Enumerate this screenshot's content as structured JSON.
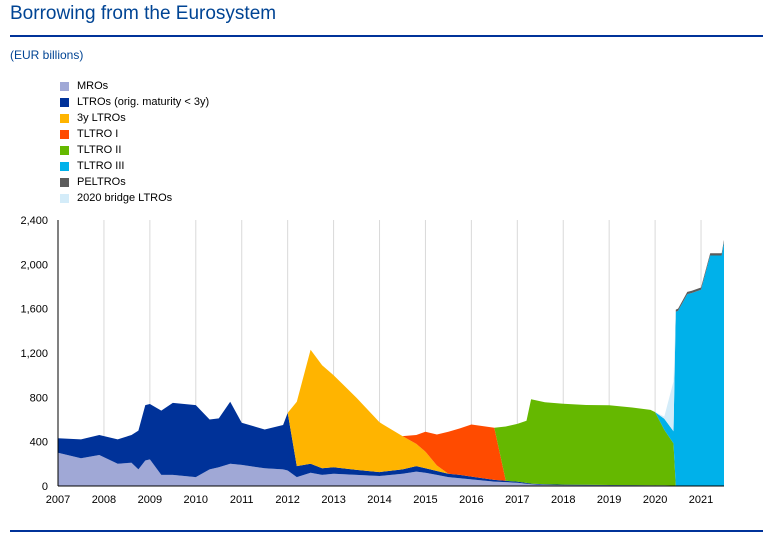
{
  "page": {
    "title": "Borrowing from the Eurosystem",
    "unit": "(EUR billions)"
  },
  "chart_data": {
    "type": "area",
    "stacked": true,
    "title": "Borrowing from the Eurosystem",
    "ylabel": "(EUR billions)",
    "xlim": [
      2007.0,
      2021.5
    ],
    "ylim": [
      0,
      2400
    ],
    "yticks": [
      "0",
      "400",
      "800",
      "1,200",
      "1,600",
      "2,000",
      "2,400"
    ],
    "xticks": [
      "2007",
      "2008",
      "2009",
      "2010",
      "2011",
      "2012",
      "2013",
      "2014",
      "2015",
      "2016",
      "2017",
      "2018",
      "2019",
      "2020",
      "2021"
    ],
    "grid": "vertical",
    "legend_position": "top-left",
    "x": [
      2007.0,
      2007.5,
      2007.9,
      2008.3,
      2008.6,
      2008.75,
      2008.9,
      2009.0,
      2009.25,
      2009.5,
      2009.75,
      2010.0,
      2010.3,
      2010.5,
      2010.75,
      2011.0,
      2011.5,
      2011.9,
      2012.0,
      2012.2,
      2012.5,
      2012.75,
      2013.0,
      2013.5,
      2014.0,
      2014.5,
      2014.8,
      2015.0,
      2015.25,
      2015.5,
      2015.75,
      2016.0,
      2016.25,
      2016.5,
      2016.75,
      2017.0,
      2017.2,
      2017.3,
      2017.6,
      2018.0,
      2018.5,
      2019.0,
      2019.5,
      2019.9,
      2020.0,
      2020.2,
      2020.4,
      2020.45,
      2020.5,
      2020.7,
      2020.8,
      2021.0,
      2021.2,
      2021.3,
      2021.45,
      2021.5
    ],
    "series": [
      {
        "name": "MROs",
        "color": "#a0a8d6",
        "values": [
          300,
          250,
          280,
          200,
          210,
          150,
          230,
          240,
          100,
          100,
          90,
          80,
          150,
          170,
          200,
          190,
          160,
          150,
          140,
          80,
          120,
          100,
          110,
          100,
          90,
          110,
          130,
          120,
          100,
          80,
          70,
          60,
          50,
          40,
          35,
          30,
          20,
          15,
          10,
          8,
          7,
          6,
          5,
          5,
          5,
          5,
          3,
          2,
          1,
          1,
          1,
          1,
          0,
          0,
          0,
          0
        ]
      },
      {
        "name": "LTROs (orig. maturity < 3y)",
        "color": "#003299",
        "values": [
          130,
          170,
          180,
          220,
          250,
          350,
          500,
          500,
          580,
          650,
          650,
          650,
          450,
          440,
          560,
          380,
          350,
          400,
          520,
          100,
          80,
          60,
          60,
          45,
          35,
          40,
          50,
          40,
          35,
          30,
          30,
          25,
          20,
          15,
          12,
          10,
          8,
          7,
          6,
          5,
          4,
          3,
          3,
          2,
          2,
          1,
          1,
          0,
          0,
          0,
          0,
          0,
          0,
          0,
          0,
          0
        ]
      },
      {
        "name": "3y LTROs",
        "color": "#ffb400",
        "values": [
          0,
          0,
          0,
          0,
          0,
          0,
          0,
          0,
          0,
          0,
          0,
          0,
          0,
          0,
          0,
          0,
          0,
          0,
          0,
          580,
          1030,
          930,
          830,
          650,
          450,
          300,
          200,
          150,
          50,
          0,
          0,
          0,
          0,
          0,
          0,
          0,
          0,
          0,
          0,
          0,
          0,
          0,
          0,
          0,
          0,
          0,
          0,
          0,
          0,
          0,
          0,
          0,
          0,
          0,
          0,
          0
        ]
      },
      {
        "name": "TLTRO I",
        "color": "#ff4b00",
        "values": [
          0,
          0,
          0,
          0,
          0,
          0,
          0,
          0,
          0,
          0,
          0,
          0,
          0,
          0,
          0,
          0,
          0,
          0,
          0,
          0,
          0,
          0,
          0,
          0,
          0,
          0,
          80,
          180,
          280,
          380,
          420,
          470,
          470,
          470,
          0,
          0,
          0,
          0,
          0,
          0,
          0,
          0,
          0,
          0,
          0,
          0,
          0,
          0,
          0,
          0,
          0,
          0,
          0,
          0,
          0,
          0
        ]
      },
      {
        "name": "TLTRO II",
        "color": "#65b800",
        "values": [
          0,
          0,
          0,
          0,
          0,
          0,
          0,
          0,
          0,
          0,
          0,
          0,
          0,
          0,
          0,
          0,
          0,
          0,
          0,
          0,
          0,
          0,
          0,
          0,
          0,
          0,
          0,
          0,
          0,
          0,
          0,
          0,
          0,
          0,
          490,
          520,
          560,
          760,
          740,
          730,
          720,
          720,
          700,
          680,
          660,
          500,
          380,
          0,
          0,
          0,
          0,
          0,
          0,
          0,
          0,
          0
        ]
      },
      {
        "name": "TLTRO III",
        "color": "#00b1ea",
        "values": [
          0,
          0,
          0,
          0,
          0,
          0,
          0,
          0,
          0,
          0,
          0,
          0,
          0,
          0,
          0,
          0,
          0,
          0,
          0,
          0,
          0,
          0,
          0,
          0,
          0,
          0,
          0,
          0,
          0,
          0,
          0,
          0,
          0,
          0,
          0,
          0,
          0,
          0,
          0,
          0,
          0,
          0,
          0,
          0,
          0,
          100,
          110,
          1570,
          1580,
          1730,
          1740,
          1770,
          2080,
          2080,
          2080,
          2200
        ]
      },
      {
        "name": "PELTROs",
        "color": "#5c5c5c",
        "values": [
          0,
          0,
          0,
          0,
          0,
          0,
          0,
          0,
          0,
          0,
          0,
          0,
          0,
          0,
          0,
          0,
          0,
          0,
          0,
          0,
          0,
          0,
          0,
          0,
          0,
          0,
          0,
          0,
          0,
          0,
          0,
          0,
          0,
          0,
          0,
          0,
          0,
          0,
          0,
          0,
          0,
          0,
          0,
          0,
          0,
          0,
          0,
          20,
          20,
          20,
          20,
          20,
          20,
          20,
          20,
          20
        ]
      },
      {
        "name": "2020 bridge LTROs",
        "color": "#d4ecf9",
        "values": [
          0,
          0,
          0,
          0,
          0,
          0,
          0,
          0,
          0,
          0,
          0,
          0,
          0,
          0,
          0,
          0,
          0,
          0,
          0,
          0,
          0,
          0,
          0,
          0,
          0,
          0,
          0,
          0,
          0,
          0,
          0,
          0,
          0,
          0,
          0,
          0,
          0,
          0,
          0,
          0,
          0,
          0,
          0,
          0,
          0,
          20,
          450,
          0,
          0,
          0,
          0,
          0,
          0,
          0,
          0,
          0
        ]
      }
    ]
  }
}
